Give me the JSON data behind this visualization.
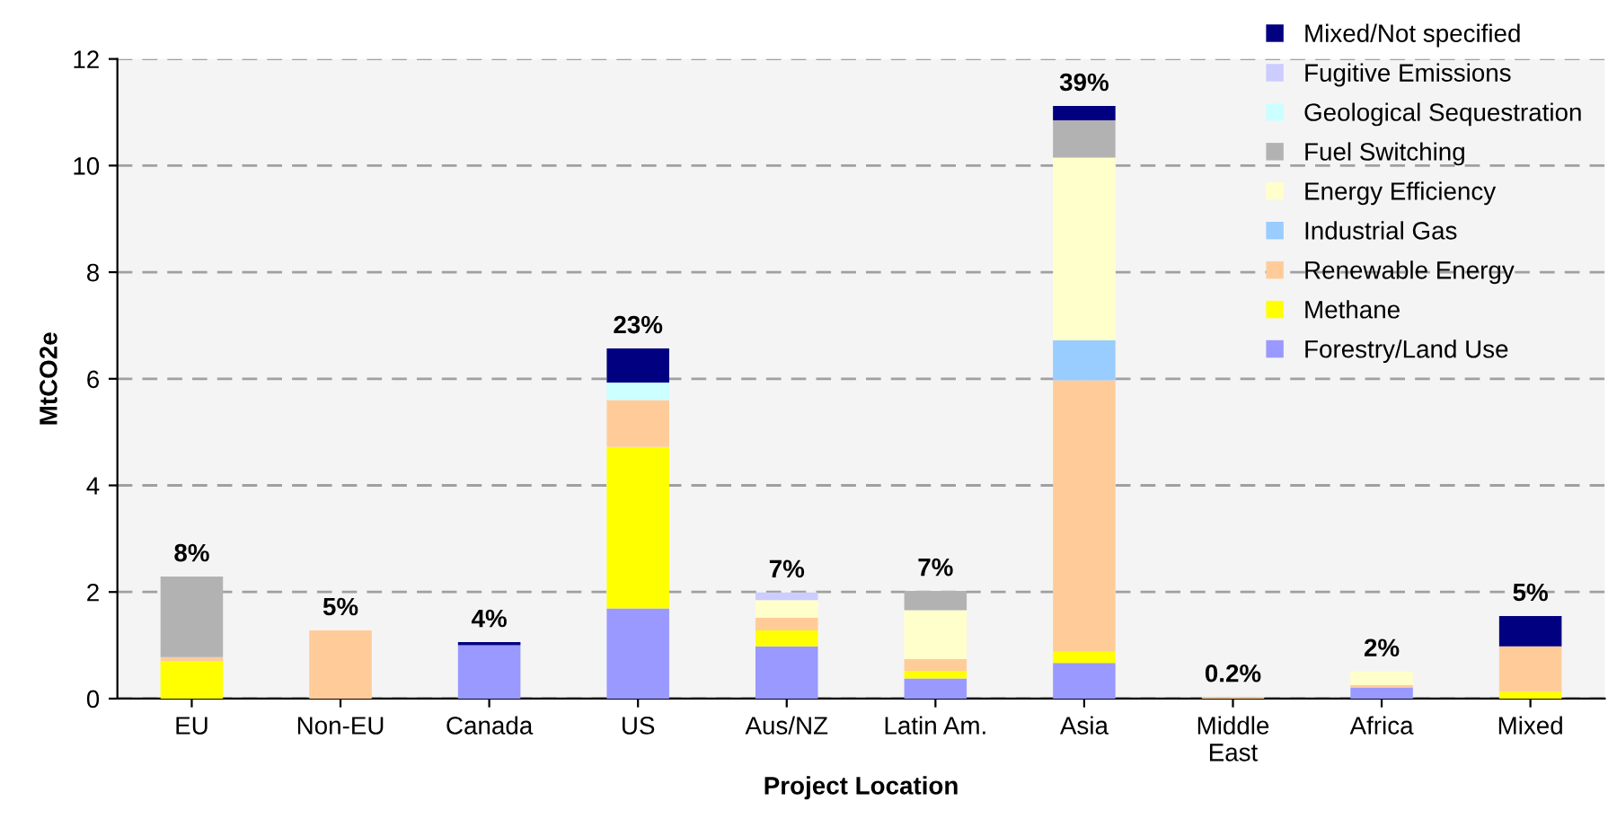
{
  "chart_data": {
    "type": "bar",
    "stacked": true,
    "xlabel": "Project Location",
    "ylabel": "MtCO2e",
    "categories": [
      "EU",
      "Non-EU",
      "Canada",
      "US",
      "Aus/NZ",
      "Latin Am.",
      "Asia",
      "Middle\nEast",
      "Africa",
      "Mixed"
    ],
    "series": [
      {
        "name": "Forestry/Land Use",
        "color": "#9999ff",
        "values": [
          null,
          null,
          1.0,
          1.69,
          0.98,
          0.38,
          0.67,
          null,
          0.21,
          null
        ]
      },
      {
        "name": "Methane",
        "color": "#ffff00",
        "values": [
          0.7,
          null,
          null,
          3.03,
          0.3,
          0.14,
          0.21,
          null,
          null,
          0.13
        ]
      },
      {
        "name": "Renewable Energy",
        "color": "#ffcc99",
        "values": [
          0.08,
          1.28,
          null,
          0.88,
          0.24,
          0.22,
          5.09,
          0.03,
          0.04,
          0.85
        ]
      },
      {
        "name": "Industrial Gas",
        "color": "#99ccff",
        "values": [
          null,
          null,
          null,
          null,
          null,
          null,
          0.75,
          null,
          null,
          null
        ]
      },
      {
        "name": "Energy Efficiency",
        "color": "#ffffcc",
        "values": [
          null,
          null,
          null,
          null,
          0.33,
          0.92,
          3.43,
          null,
          0.26,
          null
        ]
      },
      {
        "name": "Fuel Switching",
        "color": "#b2b2b2",
        "values": [
          1.51,
          null,
          null,
          null,
          null,
          0.36,
          0.7,
          null,
          null,
          null
        ]
      },
      {
        "name": "Geological Sequestration",
        "color": "#ccffff",
        "values": [
          null,
          null,
          null,
          0.33,
          null,
          null,
          null,
          null,
          null,
          null
        ]
      },
      {
        "name": "Fugitive Emissions",
        "color": "#ccccff",
        "values": [
          null,
          null,
          null,
          null,
          0.14,
          null,
          null,
          null,
          null,
          null
        ]
      },
      {
        "name": "Mixed/Not specified",
        "color": "#000080",
        "values": [
          null,
          null,
          0.06,
          0.64,
          null,
          null,
          0.27,
          null,
          null,
          0.57
        ]
      }
    ],
    "annotations": [
      {
        "text": "8%",
        "x": "EU",
        "y": 2.29
      },
      {
        "text": "5%",
        "x": "Non-EU",
        "y": 1.28
      },
      {
        "text": "4%",
        "x": "Canada",
        "y": 1.06
      },
      {
        "text": "23%",
        "x": "US",
        "y": 6.57
      },
      {
        "text": "7%",
        "x": "Aus/NZ",
        "y": 1.99
      },
      {
        "text": "7%",
        "x": "Latin Am.",
        "y": 2.02
      },
      {
        "text": "39%",
        "x": "Asia",
        "y": 11.12
      },
      {
        "text": "0.2%",
        "x": "Middle\nEast",
        "y": 0.03
      },
      {
        "text": "2%",
        "x": "Africa",
        "y": 0.51
      },
      {
        "text": "5%",
        "x": "Mixed",
        "y": 1.55
      }
    ],
    "ylim": [
      0,
      12
    ],
    "yticks": [
      0,
      2,
      4,
      6,
      8,
      10,
      12
    ],
    "grid": "y",
    "legend": "top right"
  }
}
